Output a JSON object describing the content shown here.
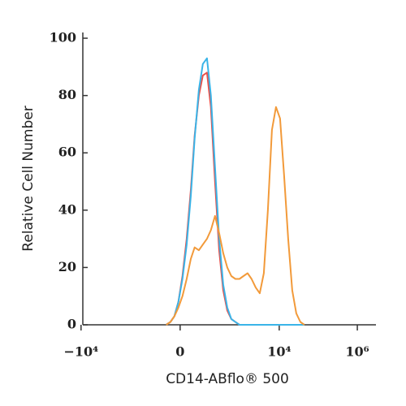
{
  "chart_data": {
    "type": "line",
    "xscale": "arcsinh",
    "x_label": "CD14-ABflo® 500",
    "y_label": "Relative Cell Number",
    "x": [
      -53,
      -35,
      -20,
      -6,
      8,
      23,
      39,
      56,
      78,
      103,
      135,
      173,
      223,
      286,
      365,
      465,
      592,
      752,
      956,
      1214,
      1543,
      1960,
      2493,
      3167,
      4025,
      5110,
      6496,
      8253,
      10492,
      13334,
      16948,
      21530,
      27364,
      34777,
      44196
    ],
    "series": [
      {
        "color": "#e8504a",
        "values": [
          0,
          1,
          3,
          8,
          17,
          30,
          47,
          66,
          80,
          87,
          88,
          76,
          50,
          26,
          12,
          5,
          2,
          1,
          0,
          0,
          0,
          0,
          0,
          0,
          0,
          0,
          0,
          0,
          0,
          0,
          0,
          0,
          0,
          0,
          0
        ]
      },
      {
        "color": "#3ab4e8",
        "values": [
          0,
          1,
          3,
          8,
          16,
          28,
          45,
          65,
          82,
          91,
          93,
          80,
          55,
          30,
          14,
          6,
          2,
          1,
          0,
          0,
          0,
          0,
          0,
          0,
          0,
          0,
          0,
          0,
          0,
          0,
          0,
          0,
          0,
          0,
          0
        ]
      },
      {
        "color": "#f29a3a",
        "values": [
          0,
          1,
          3,
          6,
          10,
          16,
          23,
          27,
          26,
          28,
          30,
          33,
          38,
          32,
          25,
          20,
          17,
          16,
          16,
          17,
          18,
          16,
          13,
          11,
          18,
          40,
          68,
          76,
          72,
          52,
          30,
          12,
          4,
          1,
          0
        ]
      }
    ],
    "xlim": [
      -12000,
      3000000
    ],
    "xticks": [
      {
        "value": -10000,
        "label": "−10⁴"
      },
      0,
      {
        "value": 10000,
        "label": "10⁴"
      },
      {
        "value": 1000000,
        "label": "10⁶"
      }
    ],
    "ylim": [
      0,
      102
    ],
    "yticks": [
      0,
      20,
      40,
      60,
      80,
      100
    ]
  }
}
